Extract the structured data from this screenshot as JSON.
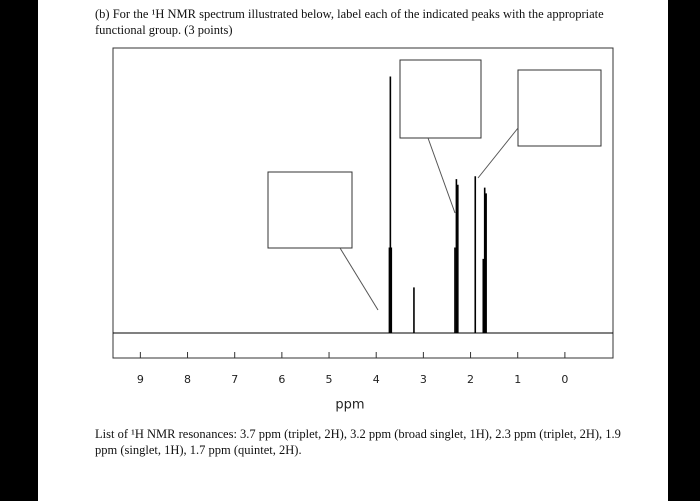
{
  "question": "(b) For the ¹H NMR spectrum illustrated below, label each of the indicated peaks with the appropriate functional group. (3 points)",
  "chart_data": {
    "type": "spectrum",
    "x_label": "ppm",
    "xlim": [
      9.58,
      -1.02
    ],
    "xticks": [
      9,
      8,
      7,
      6,
      5,
      4,
      3,
      2,
      1,
      0
    ],
    "ylim": [
      0,
      100
    ],
    "x": [
      3.72,
      3.7,
      3.68,
      3.2,
      2.33,
      2.3,
      2.27,
      1.9,
      1.73,
      1.7,
      1.67
    ],
    "values": [
      30,
      90,
      30,
      16,
      30,
      54,
      52,
      55,
      26,
      51,
      49
    ],
    "color": "#000000"
  },
  "resonances": "List of ¹H NMR resonances: 3.7 ppm (triplet, 2H), 3.2 ppm (broad singlet, 1H), 2.3 ppm (triplet, 2H), 1.9 ppm (singlet, 1H), 1.7 ppm (quintet, 2H)."
}
